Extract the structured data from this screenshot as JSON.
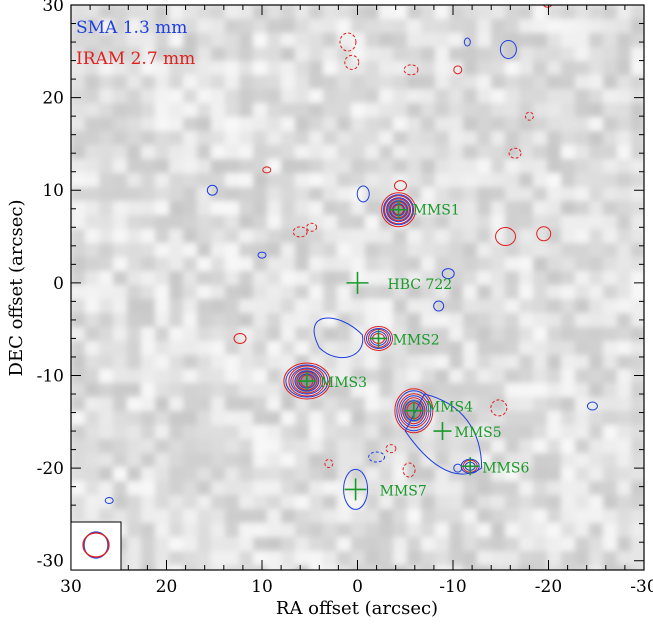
{
  "chart_data": {
    "type": "scatter",
    "title": "",
    "xlabel": "RA offset (arcsec)",
    "ylabel": "DEC offset (arcsec)",
    "xlim": [
      30,
      -30
    ],
    "ylim": [
      -31,
      30
    ],
    "x_ticks": [
      30,
      20,
      10,
      0,
      -10,
      -20,
      -30
    ],
    "x_tick_labels": [
      "30",
      "20",
      "10",
      "0",
      "-10",
      "-20",
      "-30"
    ],
    "y_ticks": [
      30,
      20,
      10,
      0,
      -10,
      -20,
      -30
    ],
    "y_tick_labels": [
      "30",
      "20",
      "10",
      "0",
      "-10",
      "-20",
      "-30"
    ],
    "legend": [
      {
        "label": "SMA 1.3 mm",
        "color": "#1f3fe0"
      },
      {
        "label": "IRAM 2.7 mm",
        "color": "#e01f1f"
      }
    ],
    "legend_position": "top-left",
    "background": "grayscale continuum map",
    "sources": [
      {
        "name": "MMS1",
        "ra": -4.3,
        "dec": 7.9
      },
      {
        "name": "HBC 722",
        "ra": 0.0,
        "dec": 0.0
      },
      {
        "name": "MMS2",
        "ra": -2.2,
        "dec": -6.0
      },
      {
        "name": "MMS3",
        "ra": 5.3,
        "dec": -10.6
      },
      {
        "name": "MMS4",
        "ra": -5.9,
        "dec": -13.8
      },
      {
        "name": "MMS5",
        "ra": -8.9,
        "dec": -16.0
      },
      {
        "name": "MMS6",
        "ra": -11.8,
        "dec": -19.8
      },
      {
        "name": "MMS7",
        "ra": 0.2,
        "dec": -22.3
      }
    ],
    "beam": "beam ellipses (lower-left corner)",
    "marker_color": "#1a9a2a"
  }
}
